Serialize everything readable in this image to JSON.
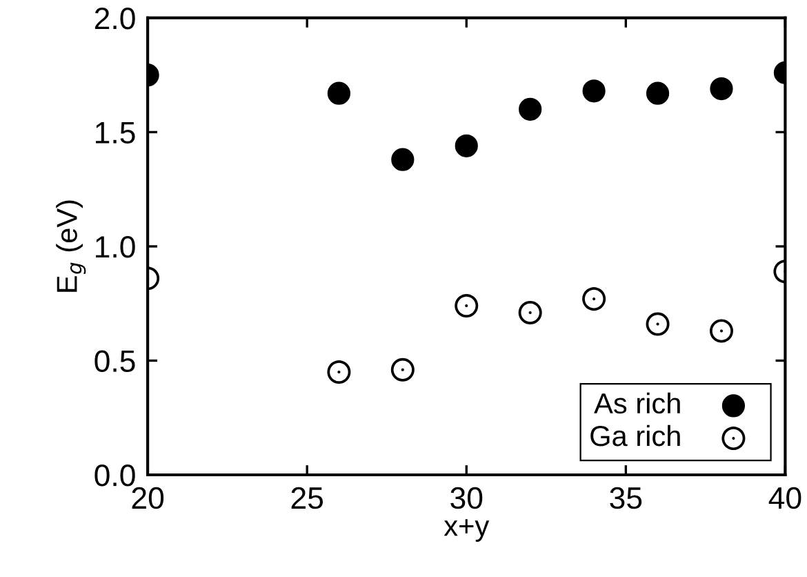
{
  "chart_data": {
    "type": "scatter",
    "xlabel": "x+y",
    "ylabel": "E$_{g}$ (eV)",
    "x": [
      20,
      26,
      28,
      30,
      32,
      34,
      36,
      38,
      40
    ],
    "series": [
      {
        "name": "As rich",
        "color": "#000000",
        "marker": "circle",
        "values": [
          1.75,
          1.67,
          1.38,
          1.44,
          1.6,
          1.68,
          1.67,
          1.69,
          1.76
        ]
      },
      {
        "name": "Ga rich",
        "color": "#000000",
        "marker": "circle",
        "values": [
          0.86,
          0.45,
          0.46,
          0.74,
          0.71,
          0.77,
          0.66,
          0.63,
          0.89
        ]
      }
    ],
    "xlim": [
      20,
      40
    ],
    "xticks": [
      20,
      25,
      30,
      35,
      40
    ],
    "ylim": [
      0,
      2
    ],
    "yticks": [
      {
        "value": 0,
        "label": "0.0"
      },
      {
        "value": 0.5,
        "label": "0.5"
      },
      {
        "value": 1,
        "label": "1.0"
      },
      {
        "value": 1.5,
        "label": "1.5"
      },
      {
        "value": 2,
        "label": "2.0"
      }
    ],
    "grid": false,
    "legend": "bottom right"
  }
}
